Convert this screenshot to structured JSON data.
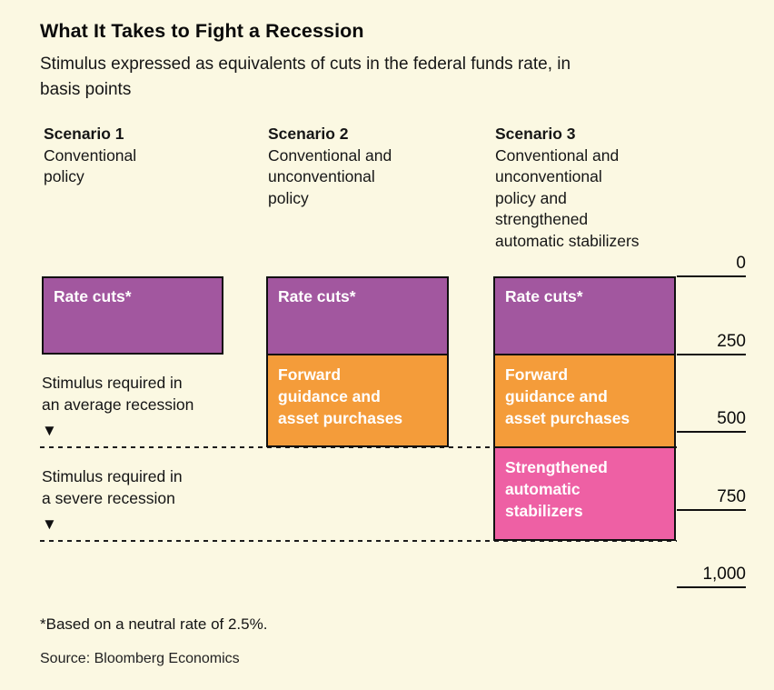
{
  "header": {
    "title": "What It Takes to Fight a Recession",
    "subtitle_lines": [
      "Stimulus expressed as equivalents of cuts in the federal funds rate, in",
      "basis points"
    ]
  },
  "chart_data": {
    "type": "bar",
    "stacked": true,
    "orientation": "vertical, growing downward from 0",
    "unit": "basis points of federal funds rate cuts",
    "categories": [
      "Scenario 1",
      "Scenario 2",
      "Scenario 3"
    ],
    "category_descriptions": [
      [
        "Conventional",
        "policy"
      ],
      [
        "Conventional and",
        "unconventional",
        "policy"
      ],
      [
        "Conventional and",
        "unconventional",
        "policy and",
        "strengthened",
        "automatic stabilizers"
      ]
    ],
    "series": [
      {
        "name": "Rate cuts*",
        "label_lines": [
          "Rate cuts*"
        ],
        "color": "#A2579F",
        "values": [
          250,
          250,
          250
        ]
      },
      {
        "name": "Forward guidance and asset purchases",
        "label_lines": [
          "Forward",
          "guidance and",
          "asset purchases"
        ],
        "color": "#F49C3A",
        "values": [
          0,
          300,
          300
        ]
      },
      {
        "name": "Strengthened automatic stabilizers",
        "label_lines": [
          "Strengthened",
          "automatic",
          "stabilizers"
        ],
        "color": "#EE60A4",
        "values": [
          0,
          0,
          300
        ]
      }
    ],
    "y_axis": {
      "direction": "down",
      "max": 1000,
      "ticks": [
        {
          "label": "0",
          "value": 0
        },
        {
          "label": "250",
          "value": 250
        },
        {
          "label": "500",
          "value": 500
        },
        {
          "label": "750",
          "value": 750
        },
        {
          "label": "1,000",
          "value": 1000
        }
      ]
    },
    "reference_lines": [
      {
        "line1": "Stimulus required in",
        "line2": "an average recession",
        "marker": "▼",
        "value": 550
      },
      {
        "line1": "Stimulus required in",
        "line2": "a severe recession",
        "marker": "▼",
        "value": 850
      }
    ],
    "colors": {
      "background": "#FBF8E2",
      "text": "#111111",
      "bar_label_text": "#FFFFFF",
      "line": "#111111"
    }
  },
  "footer": {
    "footnote": "*Based on a neutral rate of 2.5%.",
    "source": "Source: Bloomberg Economics"
  }
}
